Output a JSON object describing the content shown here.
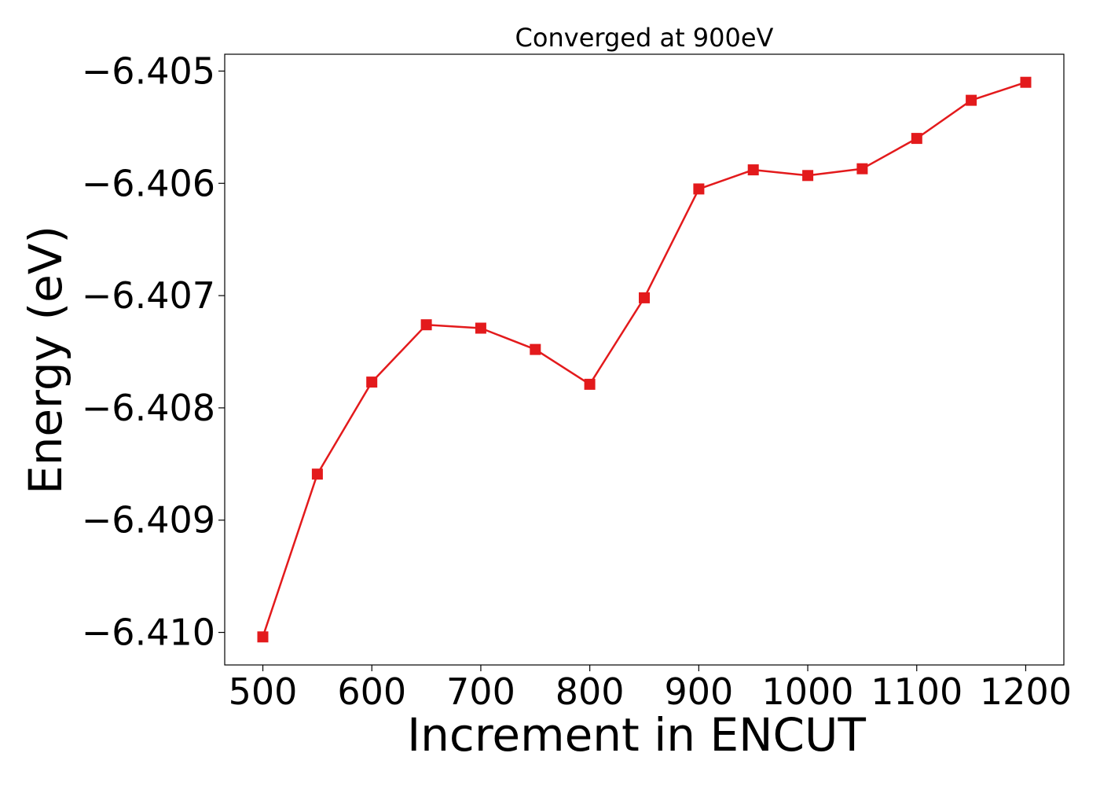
{
  "colors": {
    "series": "#e31a1c",
    "axis": "#000000",
    "background": "#ffffff"
  },
  "chart_data": {
    "type": "line",
    "title": "Converged at 900eV",
    "xlabel": "Increment in ENCUT",
    "ylabel": "Energy (eV)",
    "xlim": [
      465,
      1235
    ],
    "ylim": [
      -6.41029,
      -6.40485
    ],
    "xticks": [
      500,
      600,
      700,
      800,
      900,
      1000,
      1100,
      1200
    ],
    "xtick_labels": [
      "500",
      "600",
      "700",
      "800",
      "900",
      "1000",
      "1100",
      "1200"
    ],
    "yticks": [
      -6.405,
      -6.406,
      -6.407,
      -6.408,
      -6.409,
      -6.41
    ],
    "ytick_labels": [
      "−6.405",
      "−6.406",
      "−6.407",
      "−6.408",
      "−6.409",
      "−6.410"
    ],
    "grid": false,
    "marker": "square",
    "series": [
      {
        "x": [
          500,
          550,
          600,
          650,
          700,
          750,
          800,
          850,
          900,
          950,
          1000,
          1050,
          1100,
          1150,
          1200
        ],
        "values": [
          -6.41004,
          -6.40859,
          -6.40777,
          -6.40726,
          -6.40729,
          -6.40748,
          -6.40779,
          -6.40702,
          -6.40605,
          -6.40588,
          -6.40593,
          -6.40587,
          -6.4056,
          -6.40526,
          -6.4051
        ]
      }
    ]
  }
}
